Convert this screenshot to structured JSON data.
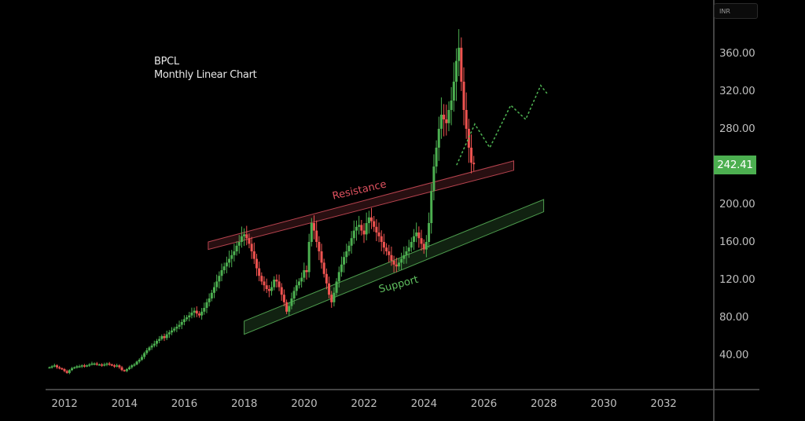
{
  "header": {
    "title_line1": "BPCL",
    "title_line2": "Monthly Linear Chart",
    "currency": "INR"
  },
  "price_axis": {
    "ticks": [
      "360.00",
      "320.00",
      "280.00",
      "200.00",
      "160.00",
      "120.00",
      "80.00",
      "40.00"
    ],
    "tick_values": [
      360,
      320,
      280,
      200,
      160,
      120,
      80,
      40
    ],
    "current_price": "242.41",
    "current_price_color": "#4caf50"
  },
  "time_axis": {
    "ticks": [
      "2012",
      "2014",
      "2016",
      "2018",
      "2020",
      "2022",
      "2024",
      "2026",
      "2028",
      "2030",
      "2032"
    ]
  },
  "annotations": {
    "resistance_label": "Resistance",
    "support_label": "Support",
    "resistance_color": "#e05260",
    "support_color": "#5fbf5f"
  },
  "colors": {
    "up": "#4caf50",
    "down": "#ef5350",
    "axis": "#5a5a5a",
    "background": "#000000"
  },
  "chart_data": {
    "type": "candlestick",
    "title": "BPCL Monthly Linear Chart",
    "xlabel": "",
    "ylabel": "INR",
    "ylim": [
      0,
      380
    ],
    "xlim": [
      2011.4,
      2034.7
    ],
    "grid": false,
    "current_price": 242.41,
    "closes_monthly_from_2011_5": [
      27,
      28,
      29,
      27,
      26,
      25,
      23,
      21,
      24,
      26,
      27,
      28,
      28,
      29,
      28,
      29,
      30,
      31,
      31,
      30,
      30,
      29,
      30,
      31,
      30,
      29,
      28,
      29,
      27,
      24,
      23,
      25,
      27,
      29,
      30,
      33,
      35,
      38,
      42,
      45,
      48,
      50,
      52,
      55,
      57,
      60,
      58,
      62,
      64,
      66,
      68,
      70,
      72,
      75,
      78,
      80,
      82,
      85,
      87,
      84,
      82,
      86,
      90,
      96,
      100,
      106,
      112,
      118,
      124,
      130,
      134,
      138,
      142,
      146,
      150,
      156,
      160,
      166,
      168,
      164,
      158,
      150,
      142,
      132,
      124,
      118,
      114,
      110,
      108,
      112,
      120,
      118,
      112,
      104,
      96,
      86,
      92,
      100,
      108,
      114,
      118,
      122,
      130,
      128,
      160,
      180,
      172,
      160,
      150,
      138,
      126,
      116,
      104,
      96,
      106,
      118,
      128,
      136,
      144,
      150,
      156,
      164,
      172,
      176,
      178,
      172,
      168,
      180,
      186,
      182,
      176,
      170,
      166,
      160,
      154,
      150,
      146,
      140,
      136,
      134,
      138,
      142,
      146,
      150,
      154,
      160,
      166,
      170,
      164,
      158,
      152,
      160,
      180,
      214,
      240,
      260,
      280,
      295,
      290,
      286,
      300,
      310,
      330,
      352,
      366,
      330,
      300,
      280,
      260,
      244,
      242.41
    ],
    "forecast_path": [
      [
        2025.1,
        242
      ],
      [
        2025.7,
        285
      ],
      [
        2026.2,
        260
      ],
      [
        2026.9,
        305
      ],
      [
        2027.4,
        290
      ],
      [
        2027.9,
        326
      ],
      [
        2028.1,
        318
      ]
    ],
    "resistance_band": {
      "start": [
        2016.8,
        160,
        152
      ],
      "end": [
        2027.0,
        246,
        236
      ]
    },
    "support_band": {
      "start": [
        2018.0,
        76,
        62
      ],
      "end": [
        2028.0,
        205,
        192
      ]
    }
  }
}
